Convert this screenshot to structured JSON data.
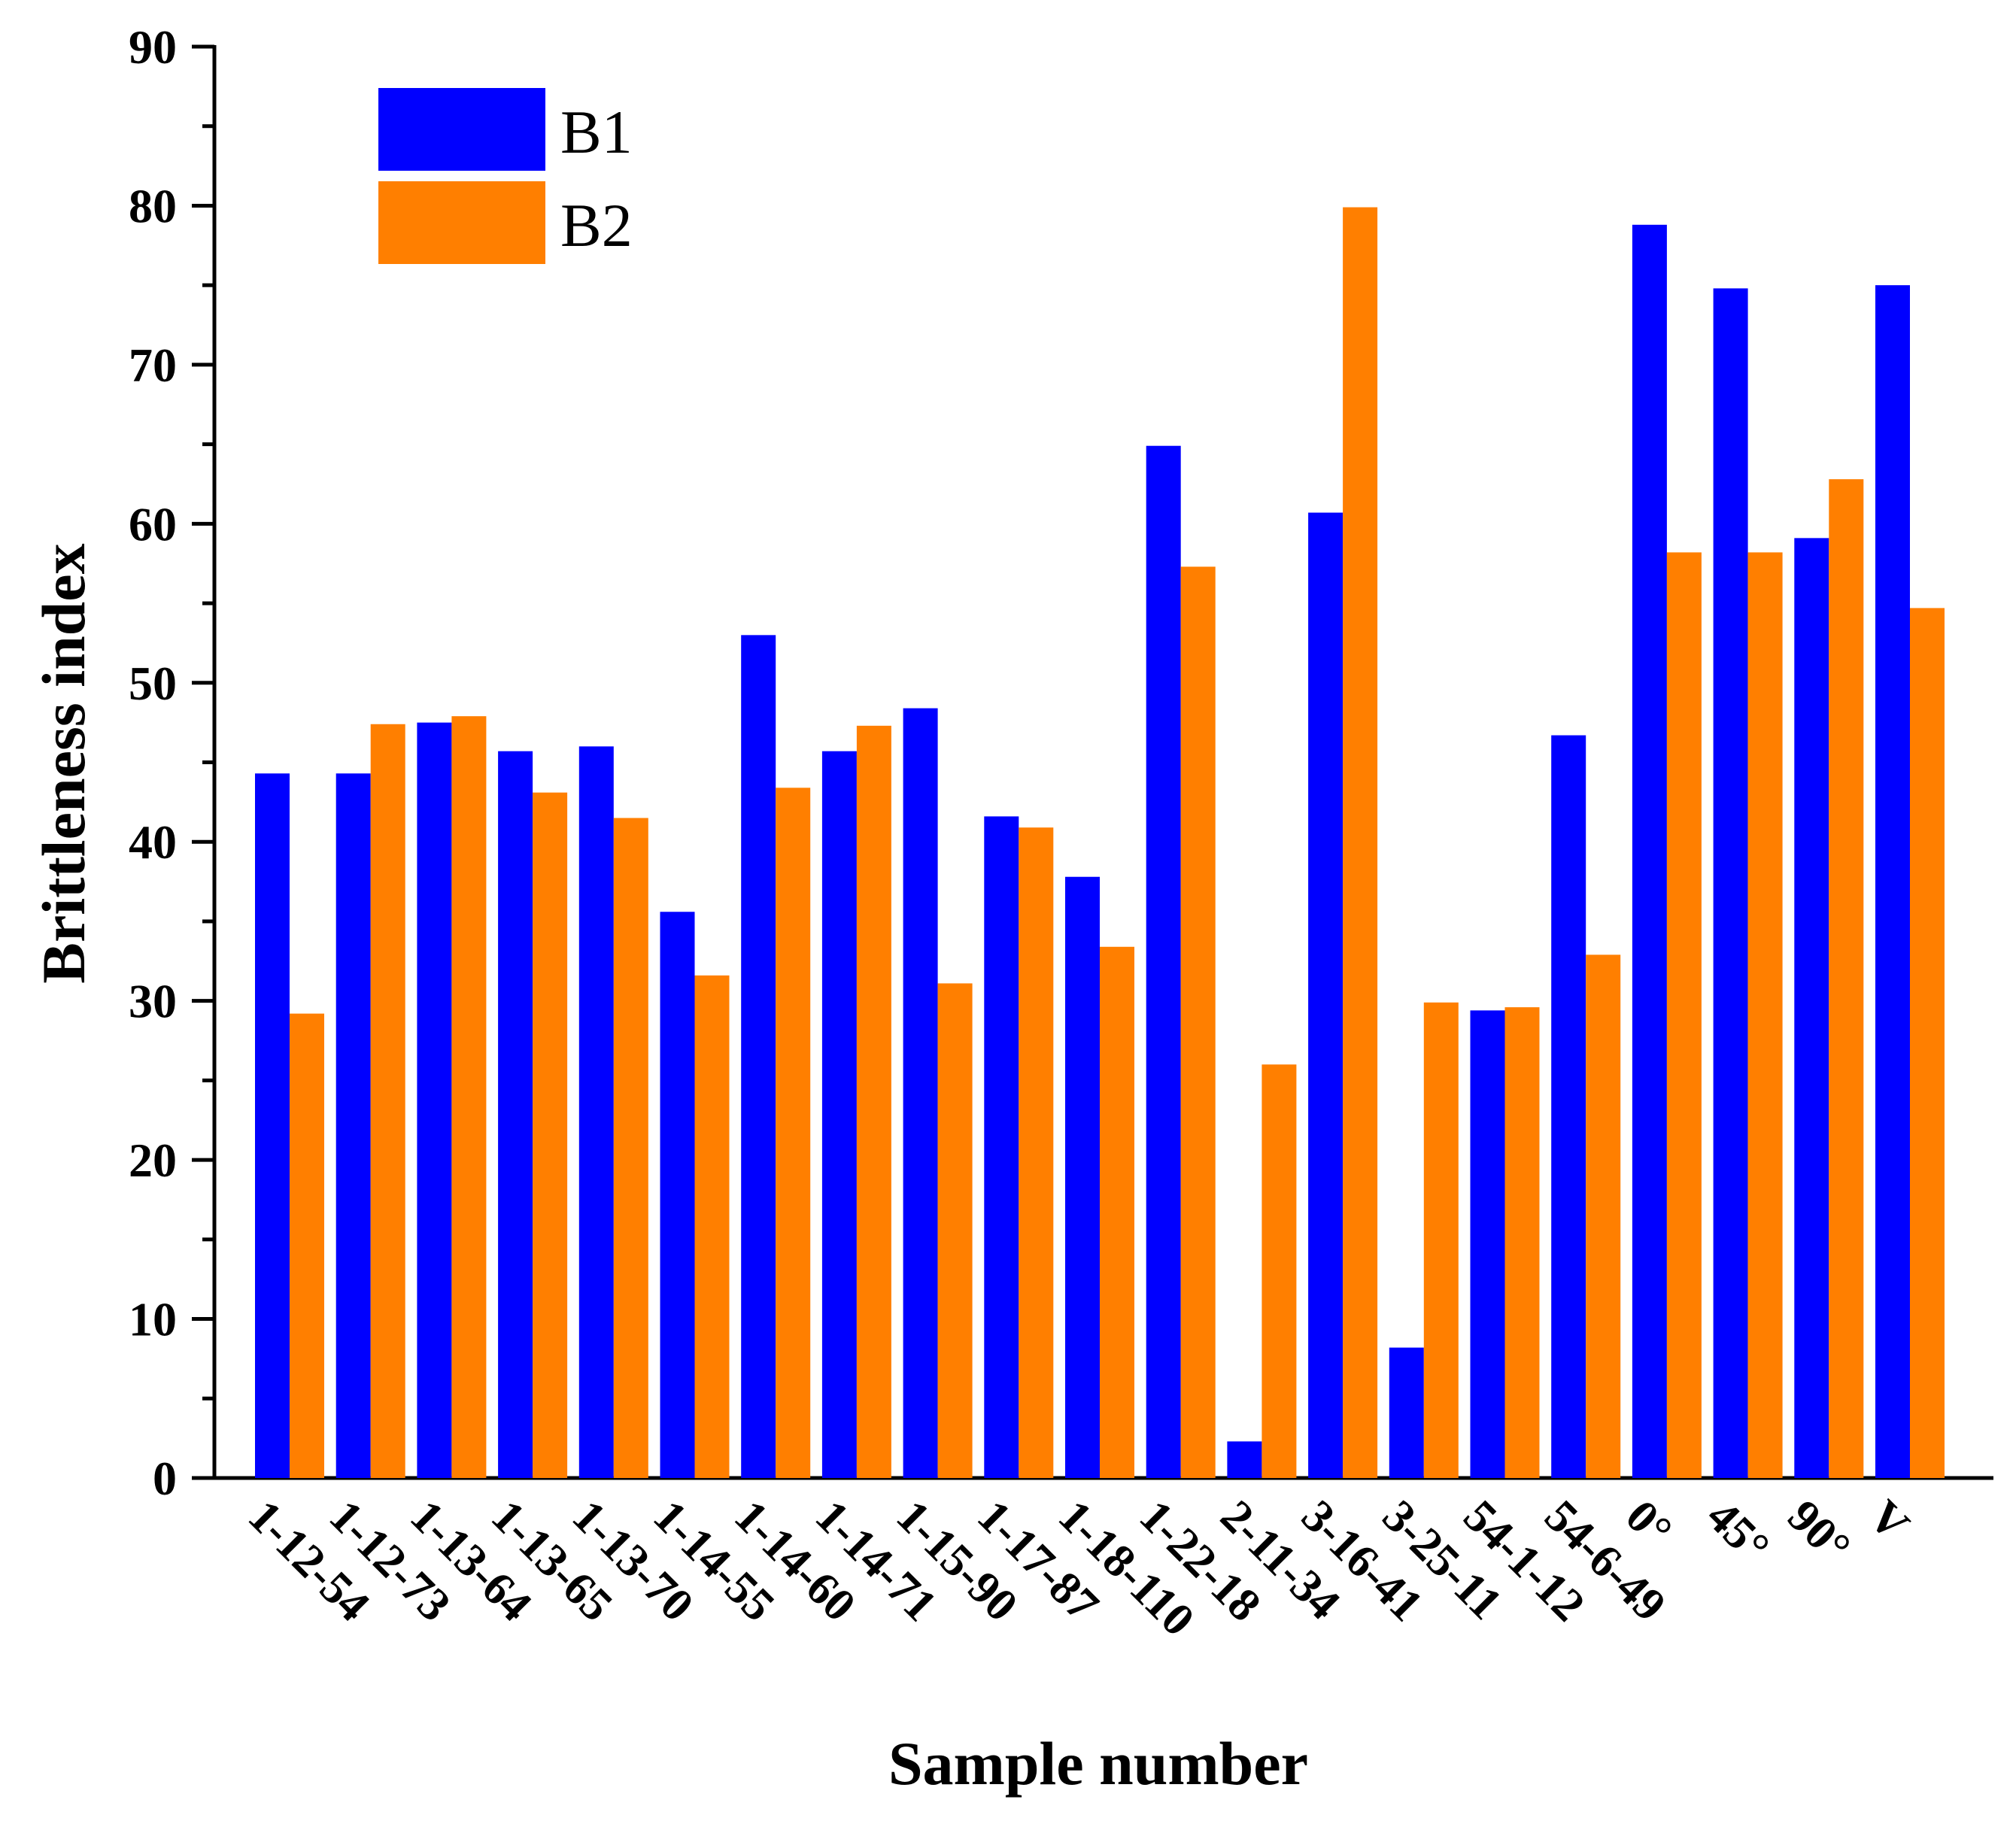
{
  "chart_data": {
    "type": "bar",
    "xlabel": "Sample number",
    "ylabel": "Brittleness index",
    "ylim": [
      0,
      90
    ],
    "yticks": [
      0,
      10,
      20,
      30,
      40,
      50,
      60,
      70,
      80,
      90
    ],
    "legend_position": "top-left",
    "categories": [
      "1-12-54",
      "1-12-73",
      "1-13-64",
      "1-13-65",
      "1-13-70",
      "1-14-55",
      "1-14-60",
      "1-14-71",
      "1-15-90",
      "1-17-87",
      "1-18-110",
      "1-22-18",
      "2-11-34",
      "3-16-41",
      "3-25-11",
      "54-1-12",
      "54-6-49",
      "0°",
      "45°",
      "90°",
      "V"
    ],
    "series": [
      {
        "name": "B1",
        "color": "#0000ff",
        "values": [
          44.3,
          44.3,
          47.5,
          45.7,
          46.0,
          35.6,
          53.0,
          45.7,
          48.4,
          41.6,
          37.8,
          64.9,
          2.3,
          60.7,
          8.2,
          29.4,
          46.7,
          78.8,
          74.8,
          59.1,
          75.0
        ]
      },
      {
        "name": "B2",
        "color": "#ff7f00",
        "values": [
          29.2,
          47.4,
          47.9,
          43.1,
          41.5,
          31.6,
          43.4,
          47.3,
          31.1,
          40.9,
          33.4,
          57.3,
          26.0,
          79.9,
          29.9,
          29.6,
          32.9,
          58.2,
          58.2,
          62.8,
          54.7
        ]
      }
    ]
  }
}
